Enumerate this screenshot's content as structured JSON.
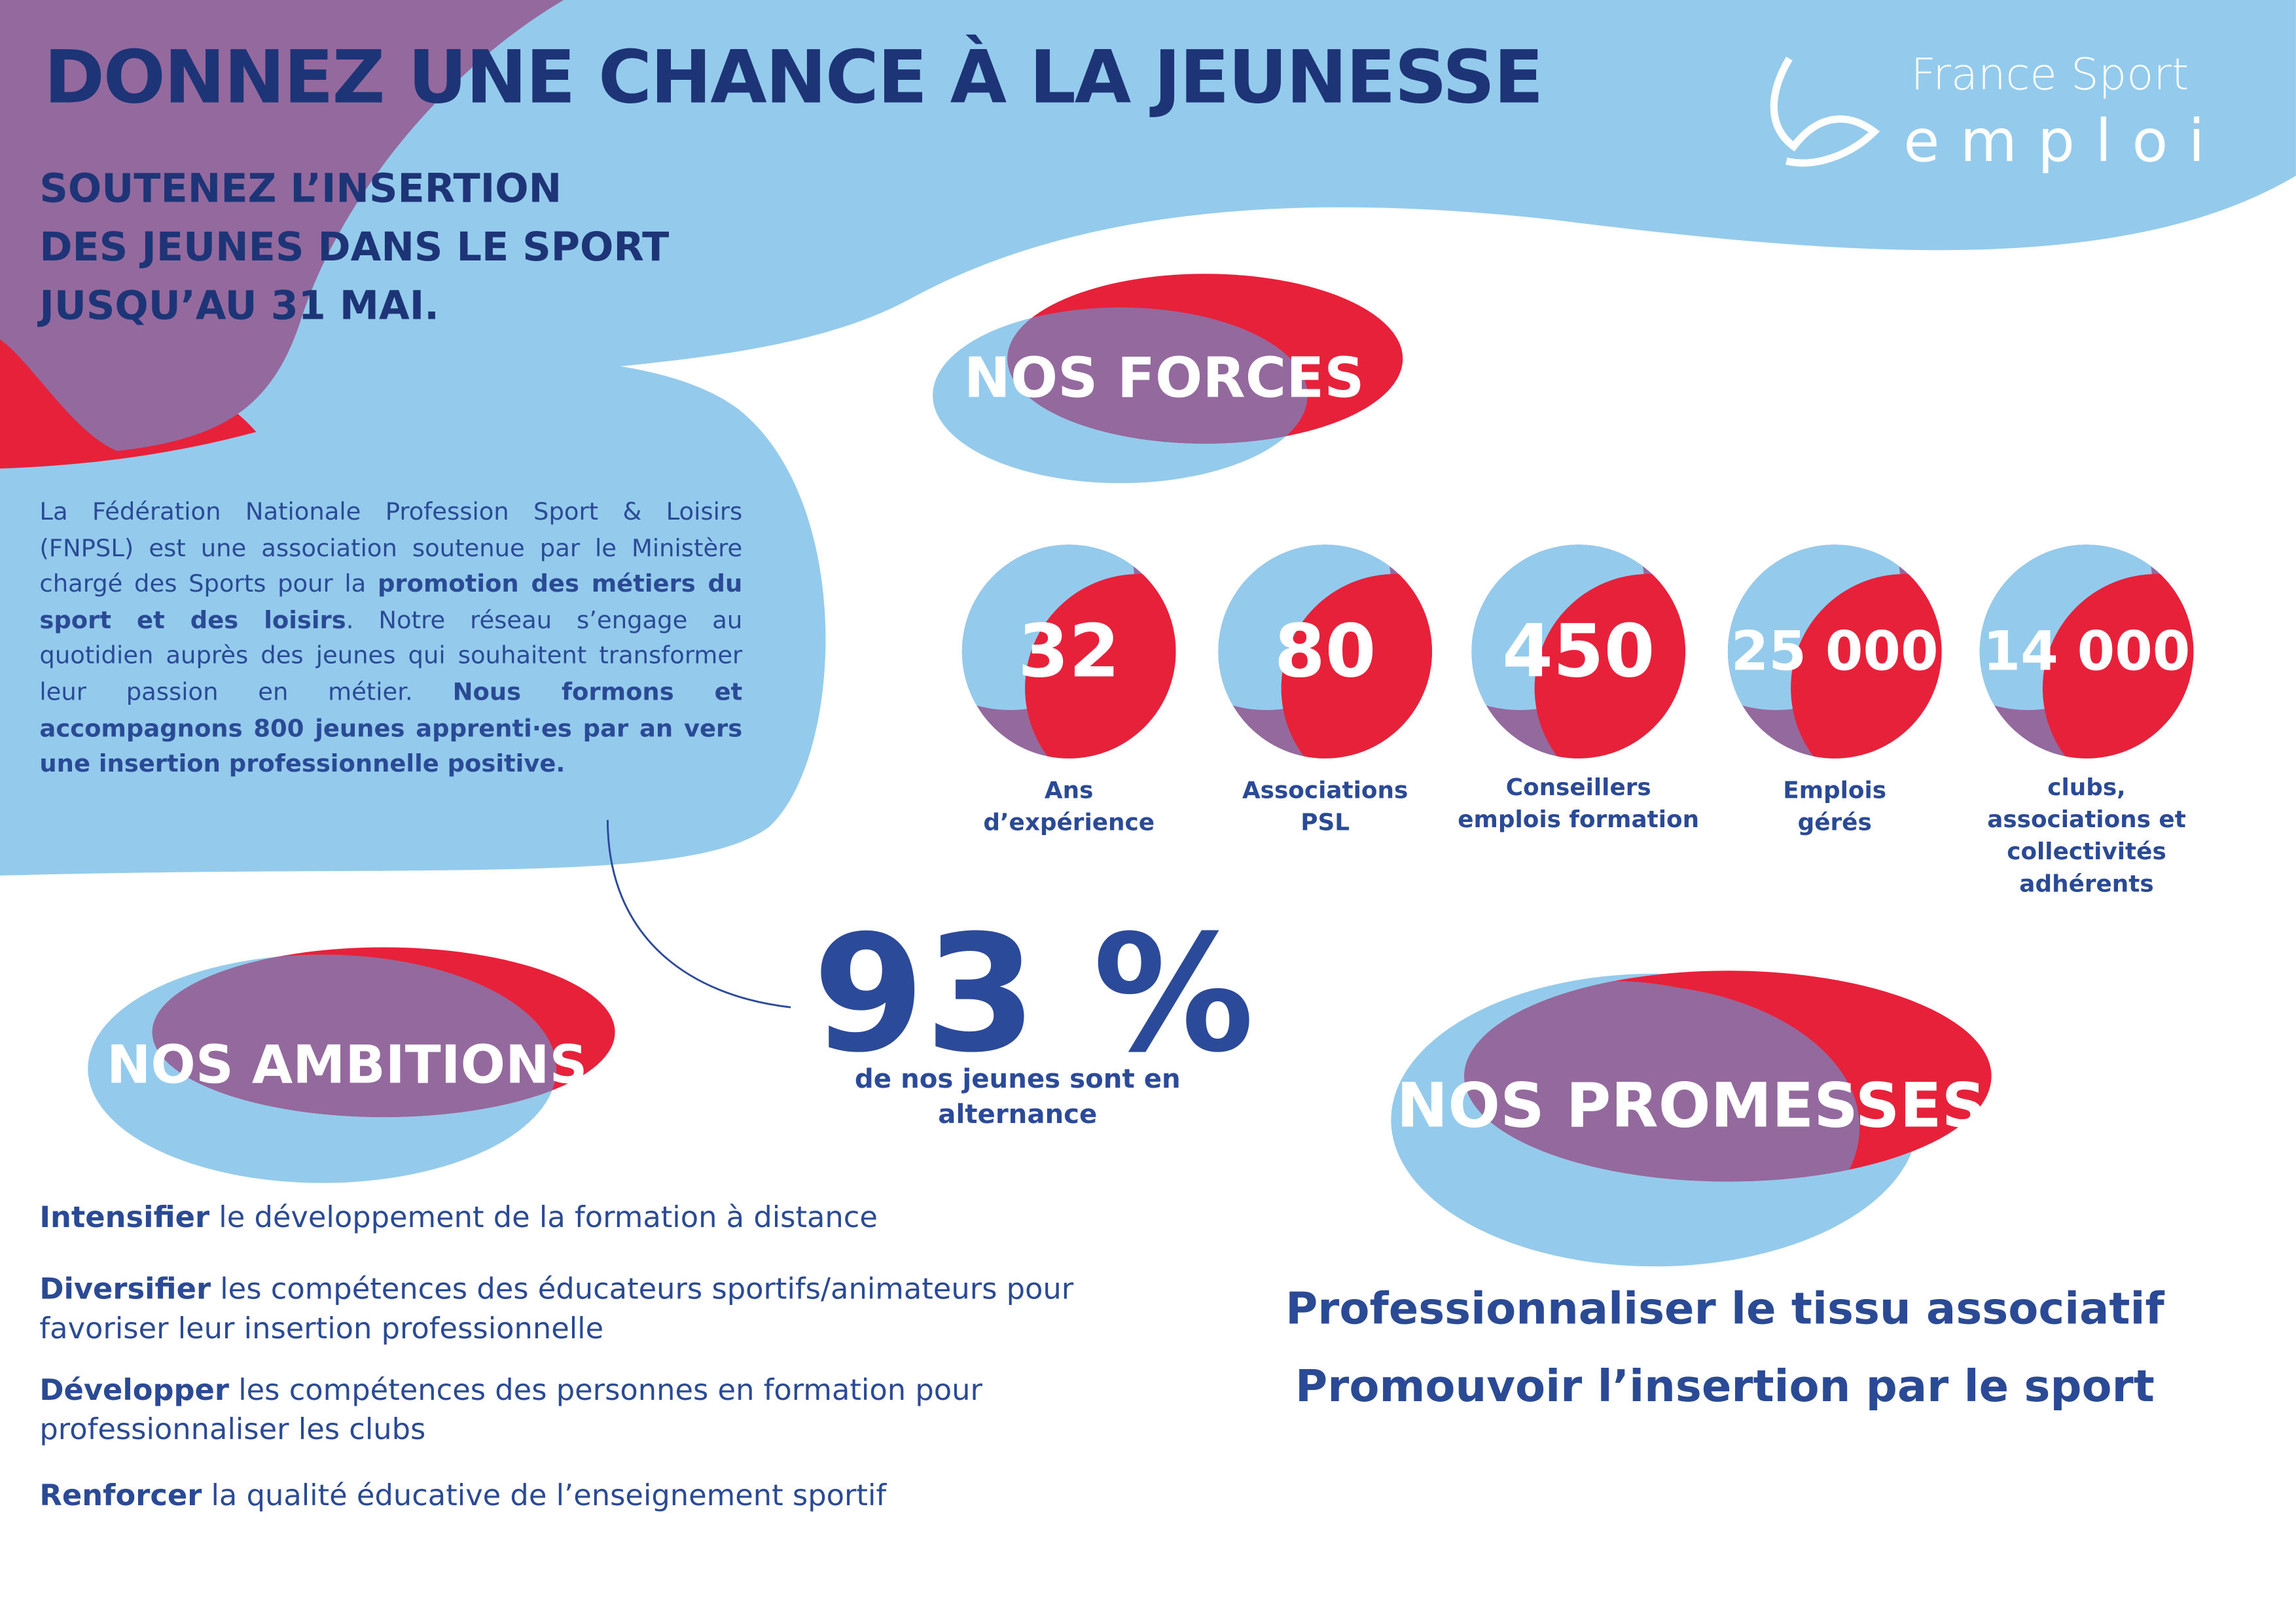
{
  "header": {
    "title": "DONNEZ UNE CHANCE À LA JEUNESSE",
    "subtitle_lines": [
      "SOUTENEZ L’INSERTION",
      "DES JEUNES DANS LE SPORT",
      "JUSQU’AU 31 MAI."
    ],
    "logo": {
      "line1": "France Sport",
      "line2": "emploi"
    }
  },
  "intro": {
    "parts": [
      {
        "text": "La Fédération Nationale Profession Sport & Loisirs (FNPSL) est une association soutenue par le Ministère chargé des Sports pour la ",
        "bold": false
      },
      {
        "text": "promotion des métiers du sport et des loisirs",
        "bold": true
      },
      {
        "text": ". Notre réseau s’engage au quotidien auprès des jeunes qui souhaitent transformer leur passion en métier. ",
        "bold": false
      },
      {
        "text": "Nous formons et accompagnons 800 jeunes apprenti·es par an vers une insertion professionnelle positive.",
        "bold": true
      }
    ]
  },
  "forces": {
    "title": "NOS FORCES",
    "items": [
      {
        "number": "32",
        "label": [
          "Ans",
          "d’expérience"
        ]
      },
      {
        "number": "80",
        "label": [
          "Associations",
          "PSL"
        ]
      },
      {
        "number": "450",
        "label": [
          "Conseillers",
          "emplois formation"
        ]
      },
      {
        "number": "25 000",
        "label": [
          "Emplois",
          "gérés"
        ]
      },
      {
        "number": "14 000",
        "label": [
          "clubs,",
          "associations et",
          "collectivités",
          "adhérents"
        ]
      }
    ]
  },
  "stat": {
    "value": "93 %",
    "caption": [
      "de nos jeunes sont en",
      "alternance"
    ]
  },
  "ambitions": {
    "title": "NOS AMBITIONS",
    "items": [
      {
        "verb": "Intensifier",
        "rest": " le développement de la formation à distance"
      },
      {
        "verb": "Diversifier",
        "rest": " les compétences des éducateurs sportifs/animateurs pour favoriser leur insertion professionnelle"
      },
      {
        "verb": "Développer",
        "rest": " les compétences des personnes en formation pour professionnaliser les clubs"
      },
      {
        "verb": "Renforcer",
        "rest": " la qualité éducative de l’enseignement sportif"
      }
    ]
  },
  "promesses": {
    "title": "NOS PROMESSES",
    "items": [
      "Professionnaliser le tissu associatif",
      "Promouvoir l’insertion par le sport"
    ]
  }
}
